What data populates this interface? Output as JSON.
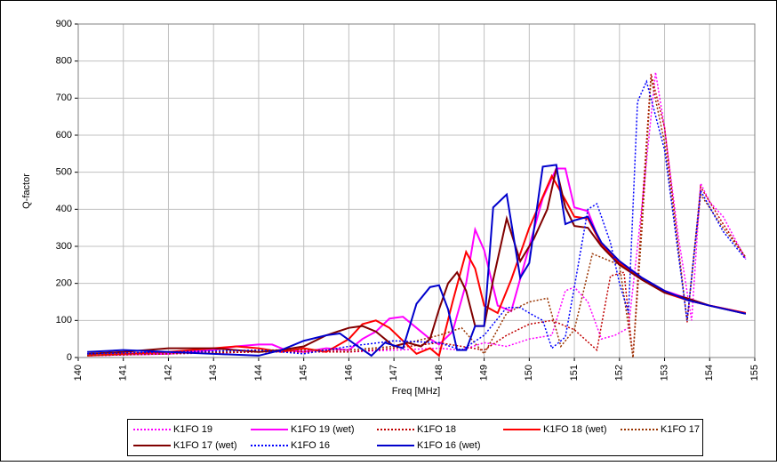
{
  "chart_data": {
    "type": "line",
    "x_label": "Freq [MHz]",
    "y_label": "Q-factor",
    "xlim": [
      140,
      155
    ],
    "xticks": [
      140,
      141,
      142,
      143,
      144,
      145,
      146,
      147,
      148,
      149,
      150,
      151,
      152,
      153,
      154,
      155
    ],
    "ylim": [
      0,
      900
    ],
    "yticks": [
      0,
      100,
      200,
      300,
      400,
      500,
      600,
      700,
      800,
      900
    ],
    "grid": true,
    "legend": "bottom",
    "series": [
      {
        "name": "K1FO 19",
        "color": "#ff00ff",
        "style": "dotted",
        "x": [
          140.2,
          142,
          144,
          145,
          146,
          147,
          148,
          148.5,
          149,
          149.5,
          150,
          150.5,
          150.8,
          151,
          151.3,
          151.6,
          151.9,
          152.2,
          152.5,
          152.8,
          153,
          153.3,
          153.6,
          153.8,
          154,
          154.3,
          154.8
        ],
        "values": [
          5,
          10,
          15,
          20,
          15,
          20,
          25,
          20,
          40,
          30,
          50,
          60,
          180,
          190,
          150,
          50,
          60,
          80,
          410,
          770,
          620,
          330,
          100,
          470,
          420,
          380,
          265
        ]
      },
      {
        "name": "K1FO 19 (wet)",
        "color": "#ff00ff",
        "style": "solid",
        "x": [
          140.2,
          141,
          142,
          143,
          143.5,
          144,
          144.3,
          144.6,
          145,
          145.5,
          146,
          146.3,
          146.6,
          146.9,
          147.2,
          147.5,
          147.8,
          148,
          148.3,
          148.6,
          148.8,
          149,
          149.3,
          149.6,
          150,
          150.3,
          150.6,
          150.8,
          151,
          151.3,
          151.6,
          152,
          152.5,
          153,
          153.5,
          154,
          154.8
        ],
        "values": [
          5,
          8,
          10,
          20,
          30,
          35,
          35,
          20,
          15,
          25,
          20,
          50,
          70,
          105,
          110,
          80,
          50,
          35,
          70,
          200,
          345,
          290,
          140,
          125,
          300,
          430,
          510,
          510,
          405,
          395,
          300,
          260,
          215,
          180,
          160,
          140,
          120
        ]
      },
      {
        "name": "K1FO 18",
        "color": "#c00000",
        "style": "dotted",
        "x": [
          140.2,
          142,
          144,
          146,
          147,
          148,
          149,
          149.5,
          150,
          150.5,
          151,
          151.5,
          151.8,
          152.1,
          152.3,
          152.5,
          152.7,
          153,
          153.5,
          153.8,
          154.3,
          154.8
        ],
        "values": [
          5,
          10,
          15,
          15,
          25,
          40,
          20,
          60,
          90,
          100,
          75,
          20,
          220,
          230,
          0,
          400,
          765,
          620,
          95,
          460,
          360,
          270
        ]
      },
      {
        "name": "K1FO 18 (wet)",
        "color": "#ff0000",
        "style": "solid",
        "x": [
          140.2,
          141,
          142,
          143,
          143.5,
          144,
          144.5,
          145,
          145.5,
          146,
          146.3,
          146.6,
          146.9,
          147.2,
          147.5,
          147.8,
          148,
          148.3,
          148.6,
          148.8,
          149,
          149.3,
          149.6,
          150,
          150.5,
          150.8,
          151,
          151.3,
          151.6,
          152,
          152.5,
          153,
          153.5,
          154,
          154.8
        ],
        "values": [
          5,
          10,
          15,
          25,
          30,
          25,
          15,
          25,
          15,
          50,
          90,
          100,
          80,
          45,
          10,
          25,
          5,
          150,
          285,
          240,
          140,
          120,
          210,
          350,
          490,
          425,
          380,
          375,
          305,
          255,
          210,
          175,
          155,
          140,
          120
        ]
      },
      {
        "name": "K1FO 17",
        "color": "#993300",
        "style": "dotted",
        "x": [
          140.2,
          142,
          144,
          146,
          147,
          148,
          148.5,
          149,
          149.5,
          150,
          150.4,
          150.7,
          151,
          151.4,
          151.7,
          152,
          152.3,
          152.5,
          152.7,
          153,
          153.5,
          153.8,
          154.3,
          154.8
        ],
        "values": [
          5,
          10,
          20,
          20,
          30,
          60,
          80,
          10,
          120,
          150,
          160,
          30,
          75,
          280,
          265,
          250,
          0,
          350,
          755,
          580,
          100,
          440,
          350,
          270
        ]
      },
      {
        "name": "K1FO 17 (wet)",
        "color": "#800000",
        "style": "solid",
        "x": [
          140.2,
          141,
          142,
          143,
          144,
          144.5,
          145,
          145.5,
          146,
          146.3,
          146.6,
          147,
          147.3,
          147.6,
          147.8,
          148,
          148.2,
          148.4,
          148.6,
          148.8,
          149,
          149.2,
          149.5,
          149.8,
          150.1,
          150.4,
          150.6,
          150.8,
          151,
          151.3,
          151.6,
          152,
          152.5,
          153,
          153.5,
          154,
          154.8
        ],
        "values": [
          10,
          15,
          25,
          25,
          15,
          20,
          30,
          60,
          80,
          85,
          70,
          30,
          40,
          30,
          50,
          130,
          200,
          230,
          180,
          85,
          85,
          210,
          375,
          260,
          320,
          400,
          510,
          405,
          355,
          350,
          300,
          250,
          210,
          175,
          160,
          140,
          118
        ]
      },
      {
        "name": "K1FO 16",
        "color": "#0000ff",
        "style": "dotted",
        "x": [
          140.2,
          142,
          144,
          145,
          146,
          147,
          148,
          148.5,
          149,
          149.5,
          149.8,
          150,
          150.3,
          150.5,
          150.8,
          151,
          151.3,
          151.5,
          151.8,
          152,
          152.2,
          152.4,
          152.6,
          153,
          153.5,
          153.8,
          154.3,
          154.8
        ],
        "values": [
          10,
          15,
          20,
          10,
          30,
          45,
          40,
          20,
          60,
          135,
          135,
          120,
          100,
          25,
          55,
          190,
          400,
          415,
          310,
          200,
          120,
          690,
          745,
          560,
          100,
          450,
          340,
          265
        ]
      },
      {
        "name": "K1FO 16 (wet)",
        "color": "#0000cc",
        "style": "solid",
        "x": [
          140.2,
          141,
          142,
          143,
          144,
          144.5,
          145,
          145.5,
          145.8,
          146.2,
          146.5,
          146.8,
          147.2,
          147.5,
          147.8,
          148,
          148.2,
          148.4,
          148.6,
          148.8,
          149,
          149.2,
          149.5,
          149.8,
          150,
          150.3,
          150.6,
          150.8,
          151,
          151.3,
          151.6,
          152,
          152.5,
          153,
          153.5,
          154,
          154.8
        ],
        "values": [
          15,
          20,
          15,
          10,
          5,
          20,
          45,
          60,
          65,
          30,
          5,
          40,
          25,
          145,
          190,
          195,
          130,
          20,
          20,
          85,
          85,
          405,
          440,
          215,
          255,
          515,
          520,
          360,
          370,
          380,
          310,
          260,
          215,
          180,
          155,
          140,
          118
        ]
      }
    ]
  }
}
